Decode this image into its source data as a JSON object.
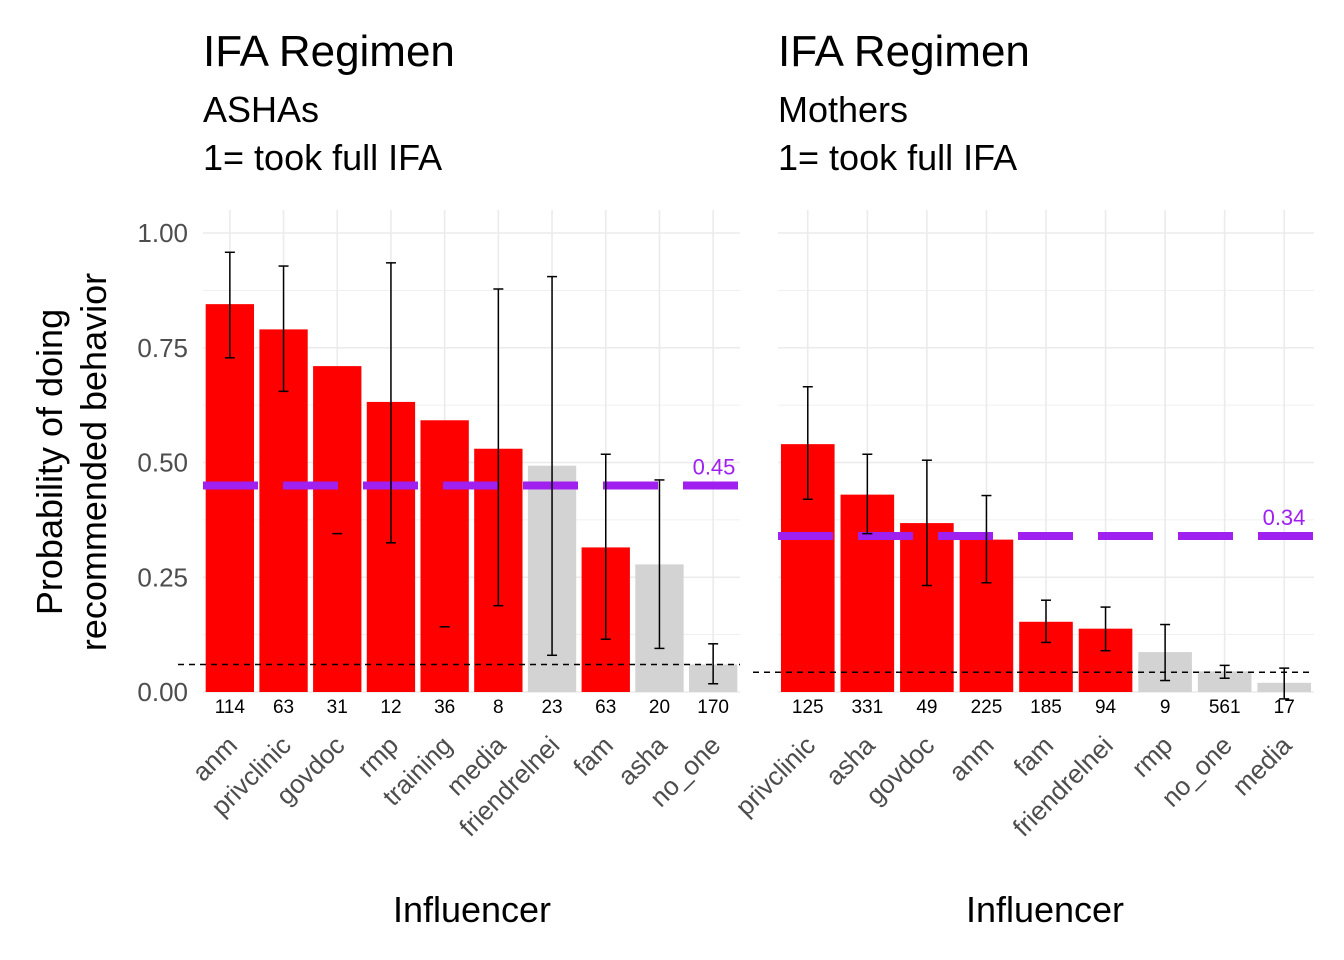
{
  "y_axis_label": [
    "Probability of doing",
    "recommended behavior"
  ],
  "colors": {
    "significant": "#ff0000",
    "nonsignificant": "#d3d3d3",
    "mean_line": "#a020f0",
    "grid": "#ebebeb",
    "error_bar": "#000000"
  },
  "chart_data": [
    {
      "type": "bar",
      "title": "IFA Regimen",
      "subtitle": [
        "ASHAs",
        "1= took full IFA"
      ],
      "xlabel": "Influencer",
      "ylim": [
        0,
        1.05
      ],
      "yticks": [
        "0.00",
        "0.25",
        "0.50",
        "0.75",
        "1.00"
      ],
      "categories": [
        "anm",
        "privclinic",
        "govdoc",
        "rmp",
        "training",
        "media",
        "friendrelnei",
        "fam",
        "asha",
        "no_one"
      ],
      "values": [
        0.845,
        0.79,
        0.71,
        0.632,
        0.592,
        0.53,
        0.493,
        0.315,
        0.278,
        0.06
      ],
      "error_low": [
        0.728,
        0.655,
        0.345,
        0.325,
        0.142,
        0.188,
        0.08,
        0.115,
        0.095,
        0.018
      ],
      "error_high": [
        0.958,
        0.928,
        null,
        0.935,
        null,
        0.878,
        0.905,
        0.518,
        0.462,
        0.105
      ],
      "counts": [
        "114",
        "63",
        "31",
        "12",
        "36",
        "8",
        "23",
        "63",
        "20",
        "170"
      ],
      "significant": [
        true,
        true,
        true,
        true,
        true,
        true,
        false,
        true,
        false,
        false
      ],
      "mean_line": 0.45,
      "mean_label": "0.45",
      "baseline": 0.06
    },
    {
      "type": "bar",
      "title": "IFA Regimen",
      "subtitle": [
        "Mothers",
        "1= took full IFA"
      ],
      "xlabel": "Influencer",
      "ylim": [
        0,
        1.05
      ],
      "yticks": [
        "0.00",
        "0.25",
        "0.50",
        "0.75",
        "1.00"
      ],
      "categories": [
        "privclinic",
        "asha",
        "govdoc",
        "anm",
        "fam",
        "friendrelnei",
        "rmp",
        "no_one",
        "media"
      ],
      "values": [
        0.54,
        0.43,
        0.368,
        0.332,
        0.153,
        0.138,
        0.087,
        0.045,
        0.02
      ],
      "error_low": [
        0.42,
        0.345,
        0.232,
        0.238,
        0.108,
        0.09,
        0.025,
        0.03,
        -0.015
      ],
      "error_high": [
        0.665,
        0.518,
        0.505,
        0.428,
        0.2,
        0.185,
        0.147,
        0.058,
        0.052
      ],
      "counts": [
        "125",
        "331",
        "49",
        "225",
        "185",
        "94",
        "9",
        "561",
        "17"
      ],
      "significant": [
        true,
        true,
        true,
        true,
        true,
        true,
        false,
        false,
        false
      ],
      "mean_line": 0.34,
      "mean_label": "0.34",
      "baseline": 0.043
    }
  ]
}
